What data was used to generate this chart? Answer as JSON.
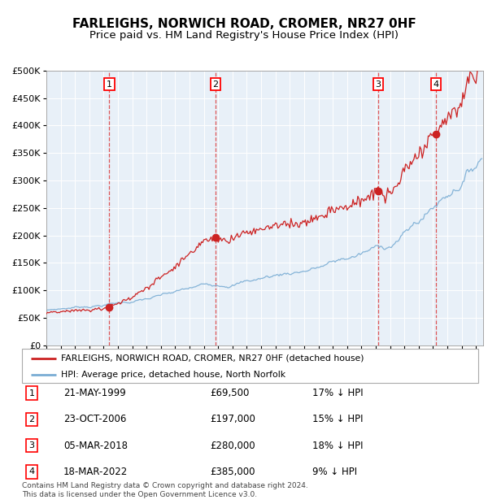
{
  "title1": "FARLEIGHS, NORWICH ROAD, CROMER, NR27 0HF",
  "title2": "Price paid vs. HM Land Registry's House Price Index (HPI)",
  "ylim": [
    0,
    500000
  ],
  "yticks": [
    0,
    50000,
    100000,
    150000,
    200000,
    250000,
    300000,
    350000,
    400000,
    450000,
    500000
  ],
  "ytick_labels": [
    "£0",
    "£50K",
    "£100K",
    "£150K",
    "£200K",
    "£250K",
    "£300K",
    "£350K",
    "£400K",
    "£450K",
    "£500K"
  ],
  "xlim_start": 1995.0,
  "xlim_end": 2025.5,
  "sale_dates": [
    1999.386,
    2006.812,
    2018.18,
    2022.21
  ],
  "sale_prices": [
    69500,
    197000,
    280000,
    385000
  ],
  "sale_labels": [
    "1",
    "2",
    "3",
    "4"
  ],
  "sale_info": [
    {
      "num": "1",
      "date": "21-MAY-1999",
      "price": "£69,500",
      "hpi": "17% ↓ HPI"
    },
    {
      "num": "2",
      "date": "23-OCT-2006",
      "price": "£197,000",
      "hpi": "15% ↓ HPI"
    },
    {
      "num": "3",
      "date": "05-MAR-2018",
      "price": "£280,000",
      "hpi": "18% ↓ HPI"
    },
    {
      "num": "4",
      "date": "18-MAR-2022",
      "price": "£385,000",
      "hpi": "9% ↓ HPI"
    }
  ],
  "hpi_color": "#7aadd4",
  "sale_line_color": "#cc2222",
  "dashed_line_color": "#dd4444",
  "background_color": "#e8f0f8",
  "legend_label_red": "FARLEIGHS, NORWICH ROAD, CROMER, NR27 0HF (detached house)",
  "legend_label_blue": "HPI: Average price, detached house, North Norfolk",
  "footer": "Contains HM Land Registry data © Crown copyright and database right 2024.\nThis data is licensed under the Open Government Licence v3.0.",
  "title_fontsize": 11,
  "subtitle_fontsize": 9.5
}
